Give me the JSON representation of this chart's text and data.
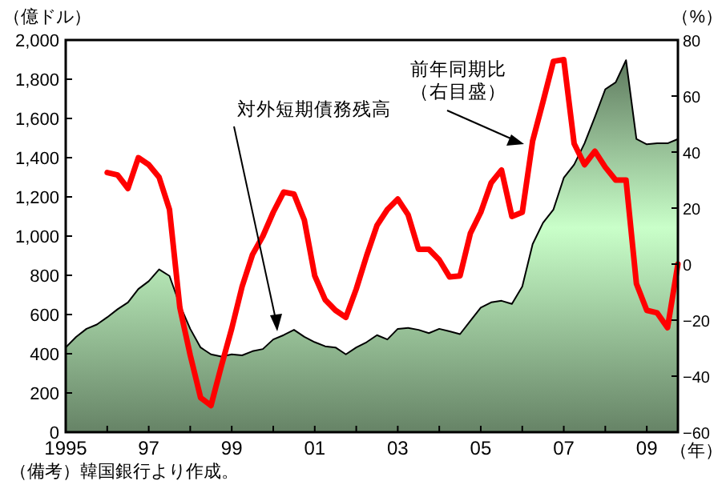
{
  "chart_data": {
    "type": "area",
    "ylabel": "（億ドル）",
    "y2label": "（%）",
    "xlabel": "（年）",
    "x": [
      1995,
      1995.25,
      1995.5,
      1995.75,
      1996,
      1996.25,
      1996.5,
      1996.75,
      1997,
      1997.25,
      1997.5,
      1997.75,
      1998,
      1998.25,
      1998.5,
      1998.75,
      1999,
      1999.25,
      1999.5,
      1999.75,
      2000,
      2000.25,
      2000.5,
      2000.75,
      2001,
      2001.25,
      2001.5,
      2001.75,
      2002,
      2002.25,
      2002.5,
      2002.75,
      2003,
      2003.25,
      2003.5,
      2003.75,
      2004,
      2004.25,
      2004.5,
      2004.75,
      2005,
      2005.25,
      2005.5,
      2005.75,
      2006,
      2006.25,
      2006.5,
      2006.75,
      2007,
      2007.25,
      2007.5,
      2007.75,
      2008,
      2008.25,
      2008.5,
      2008.75,
      2009,
      2009.25,
      2009.5,
      2009.75
    ],
    "series": [
      {
        "color": "#a8d8a8",
        "values": [
          432,
          486,
          527,
          549,
          586,
          627,
          662,
          730,
          770,
          830,
          797,
          649,
          527,
          432,
          397,
          386,
          397,
          392,
          413,
          424,
          473,
          495,
          522,
          486,
          459,
          438,
          432,
          397,
          432,
          459,
          495,
          473,
          527,
          532,
          522,
          505,
          527,
          514,
          500,
          568,
          635,
          662,
          670,
          654,
          743,
          959,
          1068,
          1135,
          1297,
          1365,
          1473,
          1608,
          1749,
          1784,
          1897,
          1495,
          1468,
          1473,
          1473,
          1495
        ]
      },
      {
        "type": "line",
        "axis": "y2",
        "color": "#ff0000",
        "values": [
          null,
          null,
          null,
          null,
          32.7,
          31.8,
          27,
          38,
          35.5,
          31,
          19.5,
          -15.5,
          -32.5,
          -47.7,
          -50.5,
          -36.4,
          -23,
          -8,
          3.4,
          10,
          18.5,
          25.7,
          25,
          15.7,
          -4.2,
          -12.7,
          -16.5,
          -19,
          -8.9,
          3,
          13.8,
          19.5,
          23.2,
          17.6,
          5.3,
          5.3,
          1.5,
          -4.6,
          -4.2,
          11,
          18.5,
          29,
          33.6,
          17,
          18.5,
          44,
          58,
          72.4,
          73,
          43,
          35.5,
          40.3,
          34.6,
          30,
          30,
          -7,
          -16.5,
          -17.4,
          -22.7,
          0
        ]
      }
    ],
    "xlim": [
      1995,
      2009.75
    ],
    "xticks": [
      1995,
      {
        "value": 1996,
        "label": null
      },
      {
        "value": 1997,
        "label": "97"
      },
      {
        "value": 1998,
        "label": null
      },
      {
        "value": 1999,
        "label": "99"
      },
      {
        "value": 2000,
        "label": null
      },
      {
        "value": 2001,
        "label": "01"
      },
      {
        "value": 2002,
        "label": null
      },
      {
        "value": 2003,
        "label": "03"
      },
      {
        "value": 2004,
        "label": null
      },
      {
        "value": 2005,
        "label": "05"
      },
      {
        "value": 2006,
        "label": null
      },
      {
        "value": 2007,
        "label": "07"
      },
      {
        "value": 2008,
        "label": null
      },
      {
        "value": 2009,
        "label": "09"
      }
    ],
    "ylim": [
      0,
      2000
    ],
    "yticks": [
      0,
      200,
      400,
      600,
      800,
      {
        "value": 1000,
        "label": "1,000"
      },
      {
        "value": 1200,
        "label": "1,200"
      },
      {
        "value": 1400,
        "label": "1,400"
      },
      {
        "value": 1600,
        "label": "1,600"
      },
      {
        "value": 1800,
        "label": "1,800"
      },
      {
        "value": 2000,
        "label": "2,000"
      }
    ],
    "y2lim": [
      -60,
      80
    ],
    "y2ticks": [
      -60,
      -40,
      -20,
      0,
      20,
      40,
      60,
      80
    ],
    "annotations": [
      "対外短期債務残高",
      "前年同期比",
      "（右目盛）",
      "（備考）韓国銀行より作成。"
    ],
    "grid": false
  }
}
